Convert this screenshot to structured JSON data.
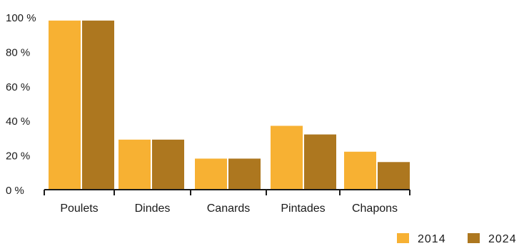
{
  "chart_data": {
    "type": "bar",
    "categories": [
      "Poulets",
      "Dindes",
      "Canards",
      "Pintades",
      "Chapons"
    ],
    "series": [
      {
        "name": "2014",
        "values": [
          98,
          29,
          18,
          37,
          22
        ],
        "color": "#f7b133"
      },
      {
        "name": "2024",
        "values": [
          98,
          29,
          18,
          32,
          16
        ],
        "color": "#ad771f"
      }
    ],
    "ylim": [
      0,
      100
    ],
    "yticks": [
      0,
      20,
      40,
      60,
      80,
      100
    ],
    "ytick_labels": [
      "0 %",
      "20 %",
      "40 %",
      "60 %",
      "80 %",
      "100 %"
    ],
    "legend_position": "bottom-right",
    "grid": false
  }
}
